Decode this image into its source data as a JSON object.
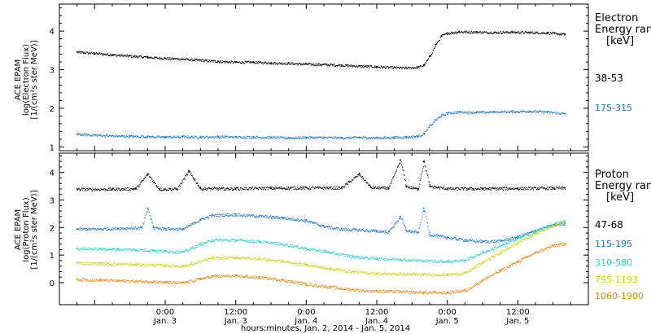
{
  "chart_data": [
    {
      "type": "scatter",
      "panel": "electron",
      "ylabel_lines": [
        "ACE EPAM",
        "log(Electron Flux)",
        "[1/(cm²s ster MeV)]"
      ],
      "ylim": [
        0.9,
        4.7
      ],
      "yticks": [
        {
          "value": 1,
          "label": "1"
        },
        {
          "value": 2,
          "label": "2"
        },
        {
          "value": 3,
          "label": "3"
        },
        {
          "value": 4,
          "label": "4"
        }
      ],
      "legend_title": [
        "Electron",
        "Energy range",
        "[keV]"
      ],
      "series": [
        {
          "name": "38-53",
          "color": "#000000",
          "points": [
            [
              -15,
              3.46
            ],
            [
              -12,
              3.43
            ],
            [
              -9,
              3.39
            ],
            [
              -6,
              3.36
            ],
            [
              -3,
              3.33
            ],
            [
              0,
              3.3
            ],
            [
              3,
              3.28
            ],
            [
              6,
              3.25
            ],
            [
              9,
              3.22
            ],
            [
              12,
              3.2
            ],
            [
              15,
              3.2
            ],
            [
              18,
              3.18
            ],
            [
              21,
              3.17
            ],
            [
              24,
              3.15
            ],
            [
              27,
              3.14
            ],
            [
              30,
              3.12
            ],
            [
              33,
              3.1
            ],
            [
              36,
              3.08
            ],
            [
              39,
              3.06
            ],
            [
              41,
              3.05
            ],
            [
              43,
              3.07
            ],
            [
              44,
              3.12
            ],
            [
              45,
              3.35
            ],
            [
              46,
              3.65
            ],
            [
              47,
              3.88
            ],
            [
              48,
              3.95
            ],
            [
              50,
              3.99
            ],
            [
              53,
              3.98
            ],
            [
              56,
              3.97
            ],
            [
              59,
              3.98
            ],
            [
              62,
              3.97
            ],
            [
              65,
              3.96
            ],
            [
              68,
              3.92
            ]
          ]
        },
        {
          "name": "175-315",
          "color": "#1a76d2",
          "points": [
            [
              -15,
              1.33
            ],
            [
              -12,
              1.31
            ],
            [
              -9,
              1.29
            ],
            [
              -6,
              1.28
            ],
            [
              -3,
              1.27
            ],
            [
              0,
              1.26
            ],
            [
              3,
              1.27
            ],
            [
              6,
              1.26
            ],
            [
              9,
              1.27
            ],
            [
              12,
              1.26
            ],
            [
              15,
              1.26
            ],
            [
              18,
              1.25
            ],
            [
              21,
              1.24
            ],
            [
              24,
              1.25
            ],
            [
              27,
              1.25
            ],
            [
              30,
              1.24
            ],
            [
              33,
              1.25
            ],
            [
              36,
              1.24
            ],
            [
              39,
              1.25
            ],
            [
              41,
              1.26
            ],
            [
              43,
              1.28
            ],
            [
              44,
              1.35
            ],
            [
              45,
              1.55
            ],
            [
              46,
              1.7
            ],
            [
              47,
              1.82
            ],
            [
              48,
              1.88
            ],
            [
              50,
              1.91
            ],
            [
              53,
              1.9
            ],
            [
              56,
              1.91
            ],
            [
              59,
              1.92
            ],
            [
              62,
              1.93
            ],
            [
              65,
              1.91
            ],
            [
              68,
              1.86
            ]
          ]
        }
      ]
    },
    {
      "type": "scatter",
      "panel": "proton",
      "ylabel_lines": [
        "ACE EPAM",
        "log(Proton Flux)",
        "[1/(cm²s ster MeV)]"
      ],
      "ylim": [
        -0.8,
        4.7
      ],
      "yticks": [
        {
          "value": 0,
          "label": "0"
        },
        {
          "value": 1,
          "label": "1"
        },
        {
          "value": 2,
          "label": "2"
        },
        {
          "value": 3,
          "label": "3"
        },
        {
          "value": 4,
          "label": "4"
        }
      ],
      "legend_title": [
        "Proton",
        "Energy range",
        "[keV]"
      ],
      "series": [
        {
          "name": "47-68",
          "color": "#000000",
          "points": [
            [
              -15,
              3.4
            ],
            [
              -9,
              3.4
            ],
            [
              -5,
              3.42
            ],
            [
              -3,
              3.95
            ],
            [
              -1,
              3.4
            ],
            [
              2,
              3.41
            ],
            [
              4,
              4.05
            ],
            [
              6,
              3.42
            ],
            [
              12,
              3.42
            ],
            [
              18,
              3.44
            ],
            [
              24,
              3.45
            ],
            [
              30,
              3.45
            ],
            [
              33,
              3.95
            ],
            [
              35,
              3.46
            ],
            [
              38,
              3.44
            ],
            [
              40,
              4.45
            ],
            [
              41,
              3.5
            ],
            [
              43,
              3.4
            ],
            [
              44,
              4.4
            ],
            [
              45,
              3.5
            ],
            [
              48,
              3.42
            ],
            [
              54,
              3.42
            ],
            [
              60,
              3.43
            ],
            [
              66,
              3.44
            ],
            [
              68,
              3.44
            ]
          ]
        },
        {
          "name": "115-195",
          "color": "#1a76d2",
          "points": [
            [
              -15,
              1.95
            ],
            [
              -11,
              1.96
            ],
            [
              -8,
              1.98
            ],
            [
              -4,
              2.0
            ],
            [
              -3,
              2.7
            ],
            [
              -2,
              2.0
            ],
            [
              0,
              1.97
            ],
            [
              3,
              1.95
            ],
            [
              6,
              2.3
            ],
            [
              8,
              2.45
            ],
            [
              12,
              2.48
            ],
            [
              16,
              2.42
            ],
            [
              20,
              2.36
            ],
            [
              24,
              2.26
            ],
            [
              27,
              2.05
            ],
            [
              30,
              1.95
            ],
            [
              33,
              1.92
            ],
            [
              36,
              1.88
            ],
            [
              38,
              1.85
            ],
            [
              40,
              2.4
            ],
            [
              41,
              1.9
            ],
            [
              43,
              1.82
            ],
            [
              44,
              2.7
            ],
            [
              45,
              1.75
            ],
            [
              48,
              1.65
            ],
            [
              51,
              1.55
            ],
            [
              54,
              1.5
            ],
            [
              57,
              1.52
            ],
            [
              60,
              1.68
            ],
            [
              63,
              1.9
            ],
            [
              66,
              2.1
            ],
            [
              68,
              2.15
            ]
          ]
        },
        {
          "name": "310-580",
          "color": "#22d1d0",
          "points": [
            [
              -15,
              1.25
            ],
            [
              -11,
              1.23
            ],
            [
              -8,
              1.22
            ],
            [
              -5,
              1.2
            ],
            [
              -2,
              1.18
            ],
            [
              0,
              1.15
            ],
            [
              3,
              1.12
            ],
            [
              6,
              1.4
            ],
            [
              8,
              1.55
            ],
            [
              12,
              1.55
            ],
            [
              16,
              1.5
            ],
            [
              20,
              1.4
            ],
            [
              24,
              1.25
            ],
            [
              28,
              1.1
            ],
            [
              32,
              0.95
            ],
            [
              36,
              0.88
            ],
            [
              40,
              0.85
            ],
            [
              44,
              0.8
            ],
            [
              48,
              0.78
            ],
            [
              51,
              0.82
            ],
            [
              54,
              1.1
            ],
            [
              57,
              1.35
            ],
            [
              60,
              1.62
            ],
            [
              63,
              1.88
            ],
            [
              66,
              2.12
            ],
            [
              68,
              2.25
            ]
          ]
        },
        {
          "name": "795-1193",
          "color": "#c8d40a",
          "points": [
            [
              -15,
              0.72
            ],
            [
              -11,
              0.7
            ],
            [
              -8,
              0.68
            ],
            [
              -5,
              0.66
            ],
            [
              -2,
              0.65
            ],
            [
              0,
              0.63
            ],
            [
              3,
              0.6
            ],
            [
              6,
              0.78
            ],
            [
              8,
              0.9
            ],
            [
              12,
              0.92
            ],
            [
              16,
              0.88
            ],
            [
              20,
              0.78
            ],
            [
              24,
              0.65
            ],
            [
              28,
              0.52
            ],
            [
              32,
              0.4
            ],
            [
              36,
              0.34
            ],
            [
              40,
              0.32
            ],
            [
              44,
              0.3
            ],
            [
              48,
              0.3
            ],
            [
              51,
              0.35
            ],
            [
              54,
              0.75
            ],
            [
              57,
              1.1
            ],
            [
              60,
              1.45
            ],
            [
              63,
              1.8
            ],
            [
              66,
              2.08
            ],
            [
              68,
              2.2
            ]
          ]
        },
        {
          "name": "1060-1900",
          "color": "#e8840a",
          "points": [
            [
              -15,
              0.12
            ],
            [
              -11,
              0.1
            ],
            [
              -8,
              0.08
            ],
            [
              -5,
              0.06
            ],
            [
              -2,
              0.05
            ],
            [
              0,
              0.02
            ],
            [
              3,
              0.0
            ],
            [
              6,
              0.15
            ],
            [
              8,
              0.24
            ],
            [
              12,
              0.25
            ],
            [
              16,
              0.2
            ],
            [
              20,
              0.1
            ],
            [
              24,
              -0.05
            ],
            [
              28,
              -0.15
            ],
            [
              32,
              -0.25
            ],
            [
              36,
              -0.3
            ],
            [
              40,
              -0.32
            ],
            [
              44,
              -0.35
            ],
            [
              48,
              -0.35
            ],
            [
              51,
              -0.28
            ],
            [
              54,
              0.1
            ],
            [
              57,
              0.45
            ],
            [
              60,
              0.78
            ],
            [
              63,
              1.1
            ],
            [
              66,
              1.35
            ],
            [
              68,
              1.42
            ]
          ]
        }
      ]
    }
  ],
  "x_axis": {
    "xlim": [
      -18,
      72
    ],
    "ticks": [
      {
        "x": 0,
        "time": "0:00",
        "date": "Jan. 3"
      },
      {
        "x": 12,
        "time": "12:00",
        "date": "Jan. 3"
      },
      {
        "x": 24,
        "time": "0:00",
        "date": "Jan. 4"
      },
      {
        "x": 36,
        "time": "12:00",
        "date": "Jan. 4"
      },
      {
        "x": 48,
        "time": "0:00",
        "date": "Jan. 5"
      },
      {
        "x": 60,
        "time": "12:00",
        "date": "Jan. 5"
      }
    ],
    "label": "hours:minutes, Jan. 2, 2014 - Jan. 5, 2014"
  }
}
